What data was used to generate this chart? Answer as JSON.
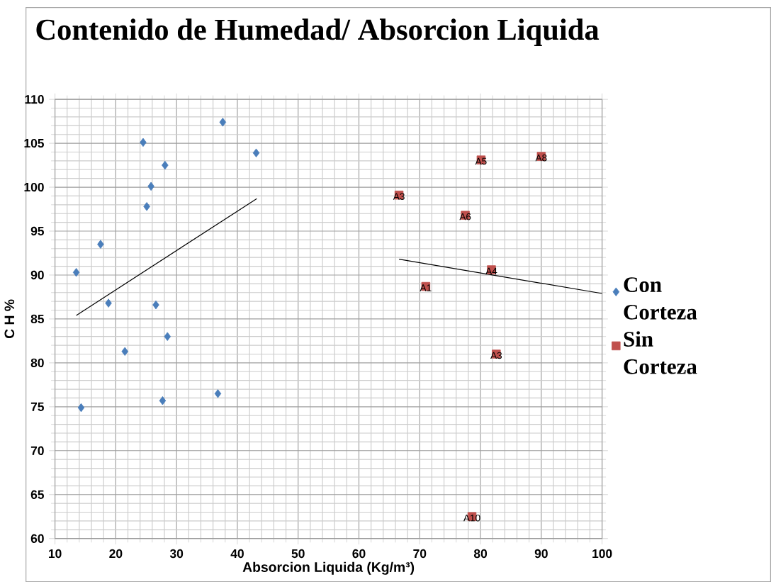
{
  "chart_data": {
    "type": "scatter",
    "title": "Contenido de Humedad/ Absorcion Liquida",
    "xlabel": "Absorcion Liquida (Kg/m³)",
    "ylabel": "C H %",
    "xlim": [
      10,
      100
    ],
    "ylim": [
      60,
      110
    ],
    "xticks": [
      10,
      20,
      30,
      40,
      50,
      60,
      70,
      80,
      90,
      100
    ],
    "yticks": [
      60,
      65,
      70,
      75,
      80,
      85,
      90,
      95,
      100,
      105,
      110
    ],
    "grid": true,
    "legend": "right",
    "series": [
      {
        "name": "Con Corteza",
        "color": "#4a7ebb",
        "marker": "diamond",
        "x": [
          13.5,
          17.5,
          18.8,
          21.5,
          14.3,
          24.5,
          25.1,
          25.8,
          28.1,
          26.6,
          28.5,
          27.7,
          37.6,
          43.1,
          36.8
        ],
        "values": [
          90.3,
          93.5,
          86.8,
          81.3,
          74.9,
          105.1,
          97.8,
          100.1,
          102.5,
          86.6,
          83.0,
          75.7,
          107.4,
          103.9,
          76.5
        ]
      },
      {
        "name": "Sin Corteza",
        "color": "#c0504d",
        "marker": "square",
        "x": [
          66.6,
          71.0,
          80.1,
          90.0,
          77.5,
          81.8,
          82.6,
          78.6
        ],
        "values": [
          99.1,
          88.7,
          103.1,
          103.5,
          96.8,
          90.6,
          81.0,
          62.5
        ],
        "value_labels": [
          "A3",
          "A1",
          "A5",
          "A8",
          "A6",
          "A4",
          "A3",
          "A10"
        ]
      },
      {
        "type": "line",
        "color": "#000000",
        "marker": "none",
        "line_style": "solid",
        "x": [
          13.5,
          43.2
        ],
        "values": [
          85.4,
          98.7
        ]
      },
      {
        "type": "line",
        "color": "#000000",
        "marker": "none",
        "line_style": "solid",
        "x": [
          66.6,
          100
        ],
        "values": [
          91.8,
          87.9
        ]
      }
    ]
  }
}
